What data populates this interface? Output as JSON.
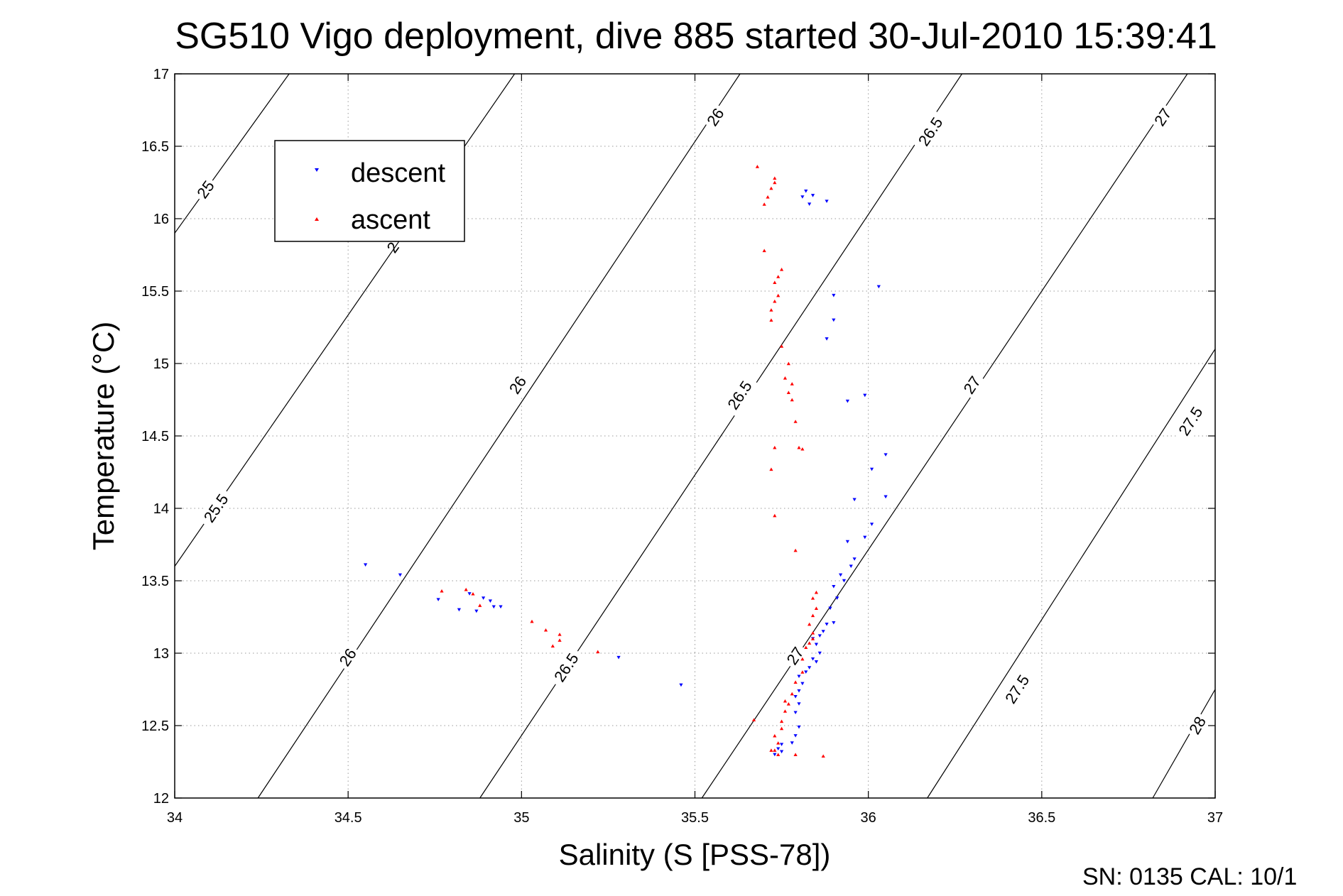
{
  "chart_data": {
    "type": "scatter",
    "title": "SG510 Vigo deployment, dive 885 started 30-Jul-2010 15:39:41",
    "xlabel": "Salinity (S [PSS-78])",
    "ylabel": "Temperature (°C)",
    "xlim": [
      34,
      37
    ],
    "ylim": [
      12,
      17
    ],
    "x_ticks": [
      34,
      34.5,
      35,
      35.5,
      36,
      36.5,
      37
    ],
    "x_tick_labels": [
      "34",
      "34.5",
      "35",
      "35.5",
      "36",
      "36.5",
      "37"
    ],
    "y_ticks": [
      12,
      12.5,
      13,
      13.5,
      14,
      14.5,
      15,
      15.5,
      16,
      16.5,
      17
    ],
    "y_tick_labels": [
      "12",
      "12.5",
      "13",
      "13.5",
      "14",
      "14.5",
      "15",
      "15.5",
      "16",
      "16.5",
      "17"
    ],
    "grid": true,
    "legend_position": "top-left",
    "footer": "SN: 0135  CAL: 10/1",
    "contours": [
      {
        "id": "c-a",
        "points": [
          [
            34,
            15.9
          ],
          [
            34.33,
            17
          ]
        ],
        "labels": [
          {
            "text": "25",
            "at": [
              34.09,
              16.2
            ]
          },
          {
            "text": "2",
            "at": [
              34.63,
              15.8
            ]
          }
        ]
      },
      {
        "id": "c-b",
        "points": [
          [
            34,
            13.6
          ],
          [
            34.98,
            17
          ]
        ],
        "labels": [
          {
            "text": "25.5",
            "at": [
              34.12,
              14.0
            ]
          }
        ]
      },
      {
        "id": "c-c",
        "points": [
          [
            34.24,
            12
          ],
          [
            35.63,
            17
          ]
        ],
        "labels": [
          {
            "text": "26",
            "at": [
              34.99,
              14.85
            ]
          },
          {
            "text": "26",
            "at": [
              34.5,
              12.97
            ]
          },
          {
            "text": "26",
            "at": [
              35.56,
              16.7
            ]
          }
        ]
      },
      {
        "id": "c-d",
        "points": [
          [
            34.88,
            12
          ],
          [
            36.27,
            17
          ]
        ],
        "labels": [
          {
            "text": "26.5",
            "at": [
              35.63,
              14.78
            ]
          },
          {
            "text": "26.5",
            "at": [
              35.13,
              12.9
            ]
          },
          {
            "text": "26.5",
            "at": [
              36.18,
              16.6
            ]
          }
        ]
      },
      {
        "id": "c-e",
        "points": [
          [
            35.52,
            12
          ],
          [
            36.92,
            17
          ]
        ],
        "labels": [
          {
            "text": "27",
            "at": [
              36.3,
              14.85
            ]
          },
          {
            "text": "27",
            "at": [
              35.79,
              12.98
            ]
          },
          {
            "text": "27",
            "at": [
              36.85,
              16.7
            ]
          }
        ]
      },
      {
        "id": "c-f",
        "points": [
          [
            36.17,
            12
          ],
          [
            37,
            15.1
          ]
        ],
        "labels": [
          {
            "text": "27.5",
            "at": [
              36.93,
              14.6
            ]
          },
          {
            "text": "27.5",
            "at": [
              36.43,
              12.75
            ]
          }
        ]
      },
      {
        "id": "c-g",
        "points": [
          [
            36.82,
            12
          ],
          [
            37,
            12.75
          ]
        ],
        "labels": [
          {
            "text": "28",
            "at": [
              36.95,
              12.5
            ]
          }
        ]
      }
    ],
    "series": [
      {
        "name": "descent",
        "color": "#0000ff",
        "marker": "triangle-down",
        "points": [
          [
            35.82,
            16.19
          ],
          [
            35.84,
            16.16
          ],
          [
            35.81,
            16.15
          ],
          [
            35.83,
            16.1
          ],
          [
            35.88,
            16.12
          ],
          [
            36.03,
            15.53
          ],
          [
            35.9,
            15.47
          ],
          [
            35.9,
            15.3
          ],
          [
            35.88,
            15.17
          ],
          [
            35.99,
            14.78
          ],
          [
            35.94,
            14.74
          ],
          [
            36.05,
            14.37
          ],
          [
            36.01,
            14.27
          ],
          [
            36.05,
            14.08
          ],
          [
            35.96,
            14.06
          ],
          [
            36.01,
            13.89
          ],
          [
            35.99,
            13.8
          ],
          [
            35.94,
            13.77
          ],
          [
            35.96,
            13.65
          ],
          [
            35.95,
            13.6
          ],
          [
            35.92,
            13.54
          ],
          [
            35.93,
            13.5
          ],
          [
            35.9,
            13.46
          ],
          [
            35.91,
            13.38
          ],
          [
            35.89,
            13.31
          ],
          [
            35.88,
            13.2
          ],
          [
            35.9,
            13.21
          ],
          [
            35.87,
            13.15
          ],
          [
            35.86,
            13.12
          ],
          [
            35.84,
            13.1
          ],
          [
            35.85,
            13.06
          ],
          [
            35.86,
            13.0
          ],
          [
            35.84,
            12.96
          ],
          [
            35.85,
            12.94
          ],
          [
            35.83,
            12.9
          ],
          [
            35.82,
            12.87
          ],
          [
            35.8,
            12.84
          ],
          [
            35.81,
            12.79
          ],
          [
            35.8,
            12.74
          ],
          [
            35.79,
            12.7
          ],
          [
            35.8,
            12.65
          ],
          [
            35.79,
            12.59
          ],
          [
            35.8,
            12.49
          ],
          [
            35.79,
            12.43
          ],
          [
            35.78,
            12.38
          ],
          [
            35.75,
            12.37
          ],
          [
            35.74,
            12.34
          ],
          [
            35.75,
            12.32
          ],
          [
            35.73,
            12.3
          ],
          [
            34.55,
            13.61
          ],
          [
            34.65,
            13.54
          ],
          [
            34.76,
            13.37
          ],
          [
            34.85,
            13.41
          ],
          [
            34.89,
            13.38
          ],
          [
            34.91,
            13.36
          ],
          [
            34.82,
            13.3
          ],
          [
            34.87,
            13.29
          ],
          [
            34.92,
            13.32
          ],
          [
            34.94,
            13.32
          ],
          [
            35.28,
            12.97
          ],
          [
            35.46,
            12.78
          ]
        ]
      },
      {
        "name": "ascent",
        "color": "#ff0000",
        "marker": "triangle-up",
        "points": [
          [
            35.68,
            16.36
          ],
          [
            35.73,
            16.28
          ],
          [
            35.73,
            16.25
          ],
          [
            35.72,
            16.21
          ],
          [
            35.71,
            16.15
          ],
          [
            35.7,
            16.1
          ],
          [
            35.7,
            15.78
          ],
          [
            35.75,
            15.65
          ],
          [
            35.74,
            15.6
          ],
          [
            35.73,
            15.56
          ],
          [
            35.74,
            15.47
          ],
          [
            35.73,
            15.43
          ],
          [
            35.72,
            15.37
          ],
          [
            35.72,
            15.3
          ],
          [
            35.75,
            15.12
          ],
          [
            35.77,
            15.0
          ],
          [
            35.76,
            14.9
          ],
          [
            35.78,
            14.86
          ],
          [
            35.77,
            14.8
          ],
          [
            35.78,
            14.75
          ],
          [
            35.79,
            14.6
          ],
          [
            35.8,
            14.42
          ],
          [
            35.81,
            14.41
          ],
          [
            35.73,
            14.42
          ],
          [
            35.72,
            14.27
          ],
          [
            35.73,
            13.95
          ],
          [
            35.79,
            13.71
          ],
          [
            35.85,
            13.42
          ],
          [
            35.84,
            13.38
          ],
          [
            35.85,
            13.31
          ],
          [
            35.84,
            13.26
          ],
          [
            35.83,
            13.2
          ],
          [
            35.84,
            13.14
          ],
          [
            35.84,
            13.1
          ],
          [
            35.83,
            13.07
          ],
          [
            35.82,
            13.04
          ],
          [
            35.81,
            12.96
          ],
          [
            35.81,
            12.87
          ],
          [
            35.79,
            12.8
          ],
          [
            35.78,
            12.72
          ],
          [
            35.76,
            12.67
          ],
          [
            35.77,
            12.65
          ],
          [
            35.76,
            12.6
          ],
          [
            35.75,
            12.53
          ],
          [
            35.75,
            12.48
          ],
          [
            35.73,
            12.43
          ],
          [
            35.74,
            12.38
          ],
          [
            35.73,
            12.33
          ],
          [
            35.72,
            12.33
          ],
          [
            35.74,
            12.3
          ],
          [
            35.79,
            12.3
          ],
          [
            35.87,
            12.29
          ],
          [
            35.67,
            12.54
          ],
          [
            34.77,
            13.43
          ],
          [
            34.84,
            13.44
          ],
          [
            34.86,
            13.41
          ],
          [
            34.88,
            13.33
          ],
          [
            35.03,
            13.22
          ],
          [
            35.07,
            13.16
          ],
          [
            35.11,
            13.13
          ],
          [
            35.11,
            13.09
          ],
          [
            35.09,
            13.05
          ],
          [
            35.22,
            13.01
          ]
        ]
      }
    ]
  }
}
